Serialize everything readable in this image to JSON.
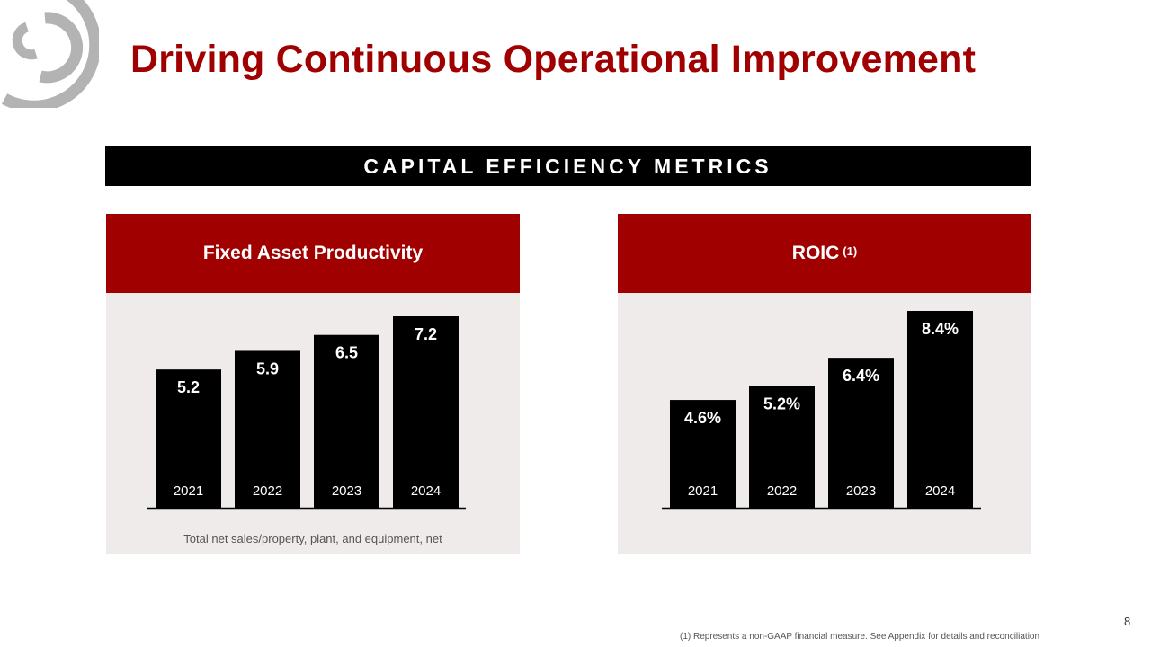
{
  "title": "Driving Continuous Operational Improvement",
  "band_label": "CAPITAL EFFICIENCY METRICS",
  "colors": {
    "accent": "#a00000",
    "bar": "#000000",
    "panel_bg": "#efebea",
    "logo": "#b3b3b3"
  },
  "logo_icon": "concentric-arcs-logo",
  "chart_data": [
    {
      "type": "bar",
      "title": "Fixed Asset Productivity",
      "title_sup": "",
      "categories": [
        "2021",
        "2022",
        "2023",
        "2024"
      ],
      "values": [
        5.2,
        5.9,
        6.5,
        7.2
      ],
      "labels": [
        "5.2",
        "5.9",
        "6.5",
        "7.2"
      ],
      "xlabel": "Total net sales/property, plant, and equipment, net",
      "ylabel": "",
      "ylim": [
        0,
        7.2
      ],
      "grid": false
    },
    {
      "type": "bar",
      "title": "ROIC",
      "title_sup": "(1)",
      "categories": [
        "2021",
        "2022",
        "2023",
        "2024"
      ],
      "values": [
        4.6,
        5.2,
        6.4,
        8.4
      ],
      "labels": [
        "4.6%",
        "5.2%",
        "6.4%",
        "8.4%"
      ],
      "xlabel": "",
      "ylabel": "",
      "ylim": [
        0,
        8.4
      ],
      "grid": false
    }
  ],
  "footnote": "(1) Represents a non-GAAP financial measure.  See Appendix for details and reconciliation",
  "page_number": "8"
}
